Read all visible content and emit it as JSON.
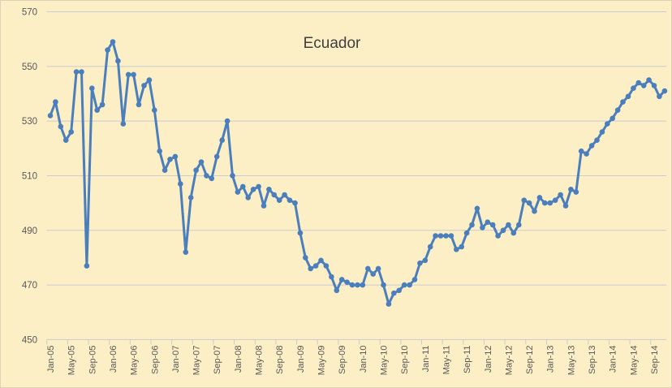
{
  "chart_data": {
    "type": "line",
    "title": "Ecuador",
    "legend": "none",
    "grid": "horizontal-only",
    "ylim": [
      450,
      570
    ],
    "y_ticks": [
      450,
      470,
      490,
      510,
      530,
      550,
      570
    ],
    "x_tick_label_every": 4,
    "x_axis_shown_labels": [
      "Jan-05",
      "May-05",
      "Sep-05",
      "Jan-06",
      "May-06",
      "Sep-06",
      "Jan-07",
      "May-07",
      "Sep-07",
      "Jan-08",
      "May-08",
      "Sep-08",
      "Jan-09",
      "May-09",
      "Sep-09",
      "Jan-10",
      "May-10",
      "Sep-10",
      "Jan-11",
      "May-11",
      "Sep-11",
      "Jan-12",
      "May-12",
      "Sep-12",
      "Jan-13",
      "May-13",
      "Sep-13",
      "Jan-14",
      "May-14",
      "Sep-14"
    ],
    "x_categories": [
      "Jan-05",
      "Feb-05",
      "Mar-05",
      "Apr-05",
      "May-05",
      "Jun-05",
      "Jul-05",
      "Aug-05",
      "Sep-05",
      "Oct-05",
      "Nov-05",
      "Dec-05",
      "Jan-06",
      "Feb-06",
      "Mar-06",
      "Apr-06",
      "May-06",
      "Jun-06",
      "Jul-06",
      "Aug-06",
      "Sep-06",
      "Oct-06",
      "Nov-06",
      "Dec-06",
      "Jan-07",
      "Feb-07",
      "Mar-07",
      "Apr-07",
      "May-07",
      "Jun-07",
      "Jul-07",
      "Aug-07",
      "Sep-07",
      "Oct-07",
      "Nov-07",
      "Dec-07",
      "Jan-08",
      "Feb-08",
      "Mar-08",
      "Apr-08",
      "May-08",
      "Jun-08",
      "Jul-08",
      "Aug-08",
      "Sep-08",
      "Oct-08",
      "Nov-08",
      "Dec-08",
      "Jan-09",
      "Feb-09",
      "Mar-09",
      "Apr-09",
      "May-09",
      "Jun-09",
      "Jul-09",
      "Aug-09",
      "Sep-09",
      "Oct-09",
      "Nov-09",
      "Dec-09",
      "Jan-10",
      "Feb-10",
      "Mar-10",
      "Apr-10",
      "May-10",
      "Jun-10",
      "Jul-10",
      "Aug-10",
      "Sep-10",
      "Oct-10",
      "Nov-10",
      "Dec-10",
      "Jan-11",
      "Feb-11",
      "Mar-11",
      "Apr-11",
      "May-11",
      "Jun-11",
      "Jul-11",
      "Aug-11",
      "Sep-11",
      "Oct-11",
      "Nov-11",
      "Dec-11",
      "Jan-12",
      "Feb-12",
      "Mar-12",
      "Apr-12",
      "May-12",
      "Jun-12",
      "Jul-12",
      "Aug-12",
      "Sep-12",
      "Oct-12",
      "Nov-12",
      "Dec-12",
      "Jan-13",
      "Feb-13",
      "Mar-13",
      "Apr-13",
      "May-13",
      "Jun-13",
      "Jul-13",
      "Aug-13",
      "Sep-13",
      "Oct-13",
      "Nov-13",
      "Dec-13",
      "Jan-14",
      "Feb-14",
      "Mar-14",
      "Apr-14",
      "May-14",
      "Jun-14",
      "Jul-14",
      "Aug-14",
      "Sep-14",
      "Oct-14",
      "Nov-14"
    ],
    "values": [
      532,
      537,
      528,
      523,
      526,
      548,
      548,
      477,
      542,
      534,
      536,
      556,
      559,
      552,
      529,
      547,
      547,
      536,
      543,
      545,
      534,
      519,
      512,
      516,
      517,
      507,
      482,
      502,
      512,
      515,
      510,
      509,
      517,
      523,
      530,
      510,
      504,
      506,
      502,
      505,
      506,
      499,
      505,
      503,
      501,
      503,
      501,
      500,
      489,
      480,
      476,
      477,
      479,
      477,
      473,
      468,
      472,
      471,
      470,
      470,
      470,
      476,
      474,
      476,
      470,
      463,
      467,
      468,
      470,
      470,
      472,
      478,
      479,
      484,
      488,
      488,
      488,
      488,
      483,
      484,
      489,
      492,
      498,
      491,
      493,
      492,
      488,
      490,
      492,
      489,
      492,
      501,
      500,
      497,
      502,
      500,
      500,
      501,
      503,
      499,
      505,
      504,
      519,
      518,
      521,
      523,
      526,
      529,
      531,
      534,
      537,
      539,
      542,
      544,
      543,
      545,
      543,
      539,
      541
    ],
    "colors": {
      "background": "#FCEEC5",
      "line": "#4A7EBC",
      "marker": "#4A7EBC",
      "gridline": "#C9CCD0",
      "axis_text": "#595959",
      "title_text": "#3F3F3F"
    }
  }
}
